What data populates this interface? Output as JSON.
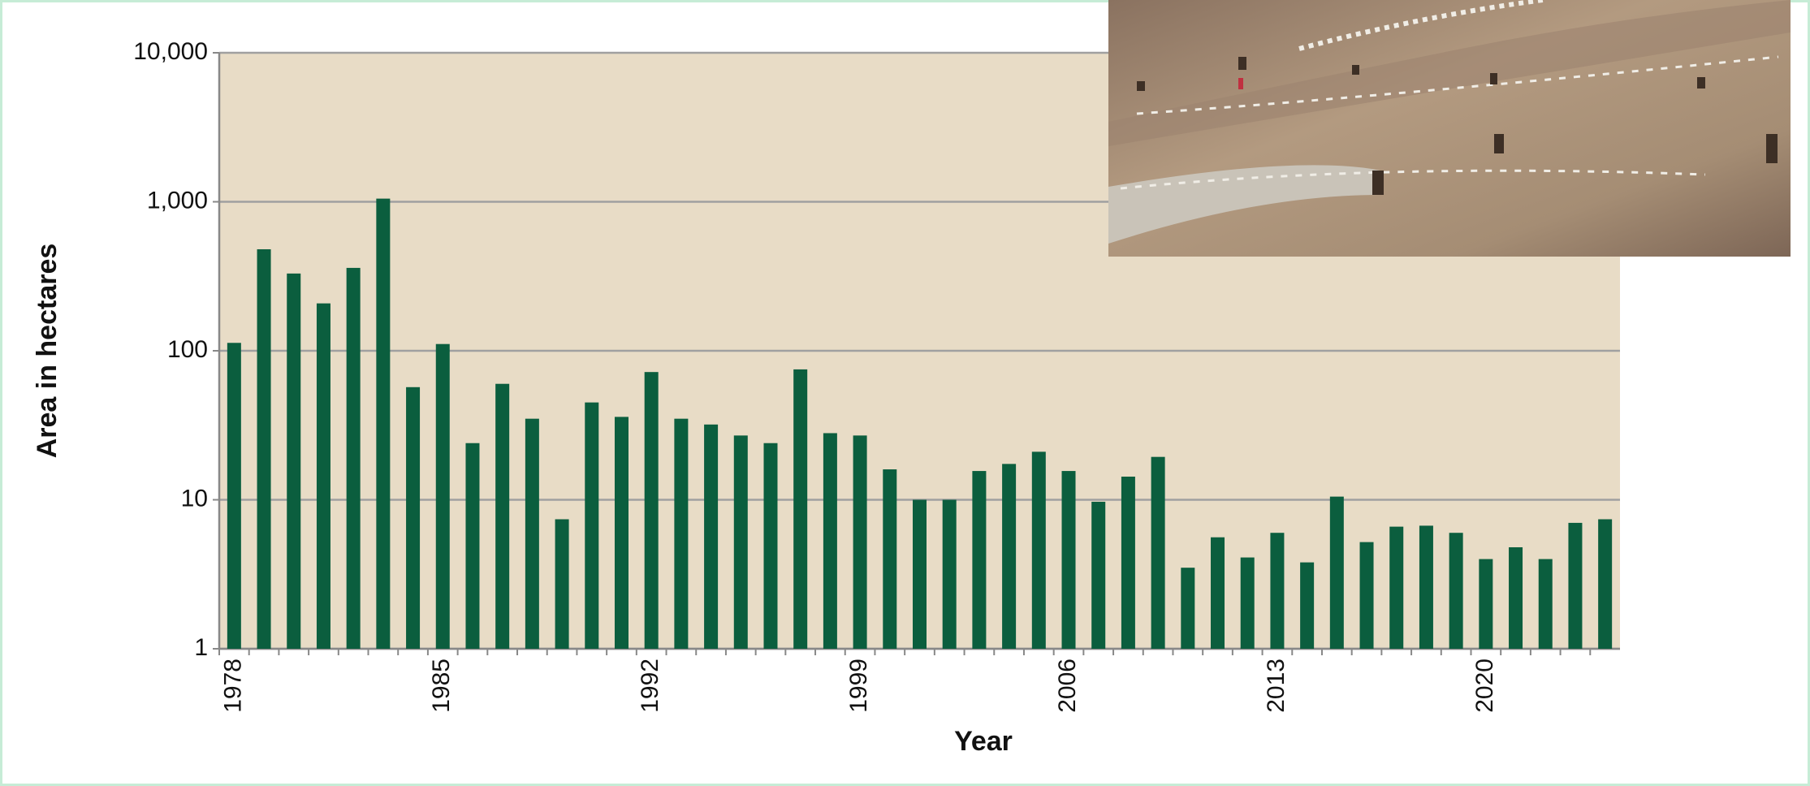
{
  "chart_data": {
    "type": "bar",
    "y_label": "Area in hectares",
    "x_label": "Year",
    "categories": [
      "1978",
      null,
      null,
      null,
      null,
      null,
      null,
      "1985",
      null,
      null,
      null,
      null,
      null,
      null,
      "1992",
      null,
      null,
      null,
      null,
      null,
      null,
      "1999",
      null,
      null,
      null,
      null,
      null,
      null,
      "2006",
      null,
      null,
      null,
      null,
      null,
      null,
      "2013",
      null,
      null,
      null,
      null,
      null,
      null,
      "2020",
      null,
      null,
      null,
      null
    ],
    "values": [
      113,
      480,
      330,
      208,
      360,
      1050,
      57,
      111,
      24,
      60,
      35,
      7.4,
      45,
      36,
      72,
      35,
      32,
      27,
      24,
      75,
      28,
      27,
      16,
      10,
      10,
      15.6,
      17.4,
      21,
      15.6,
      9.7,
      14.3,
      19.4,
      3.5,
      5.6,
      4.1,
      6,
      3.8,
      10.5,
      5.2,
      6.6,
      6.7,
      6,
      4,
      4.8,
      4,
      7,
      7.4
    ],
    "color": "#0b5e3e",
    "log_scale": true,
    "ylim": [
      1,
      10000
    ],
    "yticks": [
      {
        "value": 10000,
        "label": "10,000"
      },
      {
        "value": 1000,
        "label": "1,000"
      },
      100,
      10,
      1
    ],
    "grid": true
  }
}
